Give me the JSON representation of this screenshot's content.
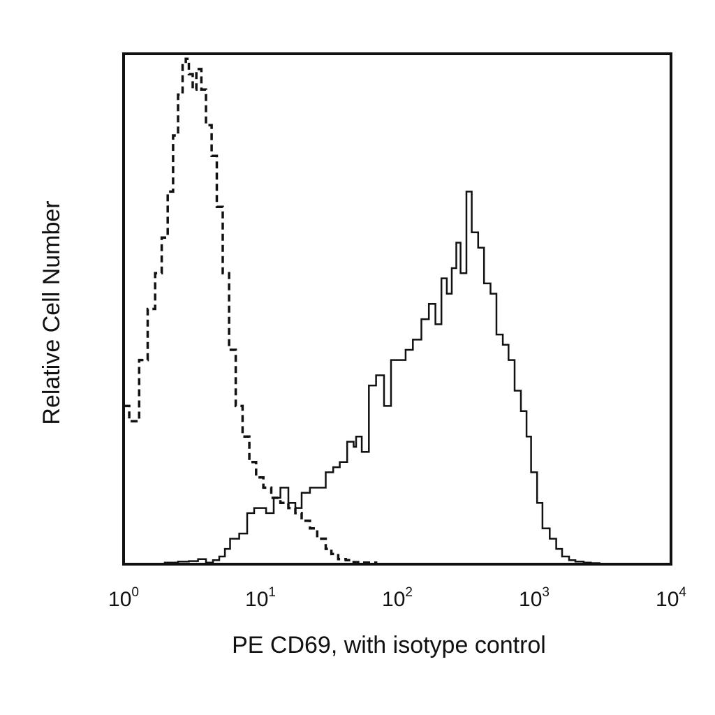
{
  "chart_data": {
    "type": "line",
    "title": "",
    "xlabel": "PE CD69, with isotype control",
    "ylabel": "Relative Cell Number",
    "x_scale": "log",
    "xlim": [
      1,
      10000
    ],
    "ylim": [
      0,
      100
    ],
    "grid": false,
    "legend": "none",
    "x_ticks": [
      {
        "base": "10",
        "exp": "0",
        "value": 1
      },
      {
        "base": "10",
        "exp": "1",
        "value": 10
      },
      {
        "base": "10",
        "exp": "2",
        "value": 100
      },
      {
        "base": "10",
        "exp": "3",
        "value": 1000
      },
      {
        "base": "10",
        "exp": "4",
        "value": 10000
      }
    ],
    "series": [
      {
        "style": "dashed",
        "color": "#111111",
        "x": [
          1.0,
          1.1,
          1.3,
          1.5,
          1.7,
          1.9,
          2.1,
          2.3,
          2.5,
          2.7,
          2.85,
          3.0,
          3.2,
          3.4,
          3.7,
          4.0,
          4.4,
          4.8,
          5.3,
          5.9,
          6.6,
          7.4,
          8.3,
          9.3,
          10.5,
          12,
          14,
          16,
          18,
          20,
          23,
          26,
          30,
          33,
          37,
          42,
          48,
          55,
          70,
          100
        ],
        "values": [
          31,
          28,
          40,
          50,
          57,
          64,
          73,
          84,
          92,
          98,
          99,
          96,
          93,
          97,
          93,
          86,
          80,
          70,
          57,
          42,
          31,
          25,
          20,
          17,
          15,
          13,
          12,
          11,
          10,
          8.5,
          7,
          5,
          3,
          2,
          1,
          0.8,
          0.4,
          0.3,
          0,
          0
        ]
      },
      {
        "style": "solid",
        "color": "#111111",
        "x": [
          1.0,
          1.5,
          2.0,
          2.5,
          3.0,
          3.5,
          4.0,
          4.5,
          5.0,
          5.5,
          6.0,
          7.0,
          8.0,
          9.0,
          10,
          11,
          12.5,
          14,
          16,
          18,
          20,
          23,
          26,
          30,
          34,
          38,
          43,
          48,
          50,
          55,
          62,
          70,
          80,
          90,
          100,
          115,
          130,
          150,
          170,
          190,
          210,
          230,
          250,
          270,
          290,
          320,
          350,
          390,
          430,
          480,
          530,
          590,
          650,
          720,
          800,
          880,
          950,
          1050,
          1150,
          1300,
          1450,
          1600,
          1800,
          2000,
          2300,
          2600,
          3000,
          4000,
          10000
        ],
        "values": [
          0,
          0,
          0.3,
          0.5,
          0.6,
          1.0,
          0.3,
          0.8,
          1.5,
          3,
          5,
          6,
          10,
          11,
          11,
          10,
          13,
          15,
          12,
          11,
          14,
          15,
          15,
          18,
          19,
          20,
          24,
          23,
          25,
          22,
          35,
          37,
          31,
          40,
          40,
          42,
          44,
          48,
          51,
          47,
          56,
          53,
          58,
          63,
          57,
          73,
          65,
          62,
          55,
          53,
          45,
          43,
          40,
          34,
          30,
          25,
          18,
          12,
          7,
          5,
          3,
          1.5,
          0.8,
          0.5,
          0.3,
          0.2,
          0,
          0,
          0
        ]
      }
    ]
  }
}
